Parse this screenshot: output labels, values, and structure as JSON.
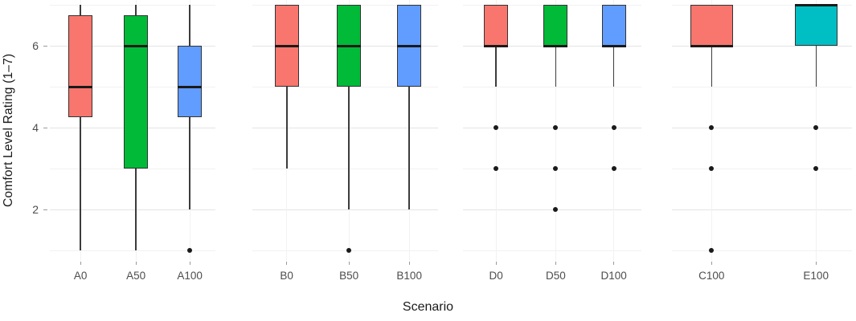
{
  "chart_data": {
    "type": "boxplot",
    "title": "",
    "xlabel": "Scenario",
    "ylabel": "Comfort Level Rating (1–7)",
    "legend": "none",
    "grid": true,
    "y_axis": {
      "tick_labels": [
        "2",
        "4",
        "6"
      ],
      "major_ticks": [
        2,
        4,
        6
      ],
      "minor_gridlines": [
        1,
        3,
        5,
        7
      ],
      "range": [
        0.75,
        7.3
      ]
    },
    "panels": [
      {
        "boxes": [
          {
            "label": "A0",
            "color": "#F8766D",
            "whisker_low": 1,
            "q1": 4.25,
            "median": 5,
            "q3": 6.75,
            "whisker_high": 7,
            "outliers": []
          },
          {
            "label": "A50",
            "color": "#00BA38",
            "whisker_low": 1,
            "q1": 3,
            "median": 6,
            "q3": 6.75,
            "whisker_high": 7,
            "outliers": []
          },
          {
            "label": "A100",
            "color": "#619CFF",
            "whisker_low": 2,
            "q1": 4.25,
            "median": 5,
            "q3": 6,
            "whisker_high": 7,
            "outliers": [
              1
            ]
          }
        ]
      },
      {
        "boxes": [
          {
            "label": "B0",
            "color": "#F8766D",
            "whisker_low": 3,
            "q1": 5,
            "median": 6,
            "q3": 7,
            "whisker_high": 7,
            "outliers": []
          },
          {
            "label": "B50",
            "color": "#00BA38",
            "whisker_low": 2,
            "q1": 5,
            "median": 6,
            "q3": 7,
            "whisker_high": 7,
            "outliers": [
              1
            ]
          },
          {
            "label": "B100",
            "color": "#619CFF",
            "whisker_low": 2,
            "q1": 5,
            "median": 6,
            "q3": 7,
            "whisker_high": 7,
            "outliers": []
          }
        ]
      },
      {
        "boxes": [
          {
            "label": "D0",
            "color": "#F8766D",
            "whisker_low": 5,
            "q1": 6,
            "median": 6,
            "q3": 7,
            "whisker_high": 7,
            "outliers": [
              4,
              3
            ]
          },
          {
            "label": "D50",
            "color": "#00BA38",
            "whisker_low": 5,
            "q1": 6,
            "median": 6,
            "q3": 7,
            "whisker_high": 7,
            "outliers": [
              4,
              3,
              2
            ]
          },
          {
            "label": "D100",
            "color": "#619CFF",
            "whisker_low": 5,
            "q1": 6,
            "median": 6,
            "q3": 7,
            "whisker_high": 7,
            "outliers": [
              4,
              3
            ]
          }
        ]
      },
      {
        "boxes": [
          {
            "label": "C100",
            "color": "#F8766D",
            "whisker_low": 5,
            "q1": 6,
            "median": 6,
            "q3": 7,
            "whisker_high": 7,
            "outliers": [
              4,
              3,
              1
            ]
          },
          {
            "label": "E100",
            "color": "#00BFC4",
            "whisker_low": 5,
            "q1": 6,
            "median": 7,
            "q3": 7,
            "whisker_high": 7,
            "outliers": [
              4,
              3
            ]
          }
        ]
      }
    ],
    "style": {
      "box_border": "#333333",
      "median_color": "#1A1A1A",
      "whisker_color": "#3C3C3C",
      "outlier_color": "#1A1A1A",
      "grid_major": "#E4E4E4",
      "grid_minor": "#F2F2F2",
      "tick_mark_color": "#9A9A9A",
      "tick_label_color": "#4D4D4D",
      "axis_title_color": "#1A1A1A",
      "background": "#FFFFFF"
    }
  }
}
